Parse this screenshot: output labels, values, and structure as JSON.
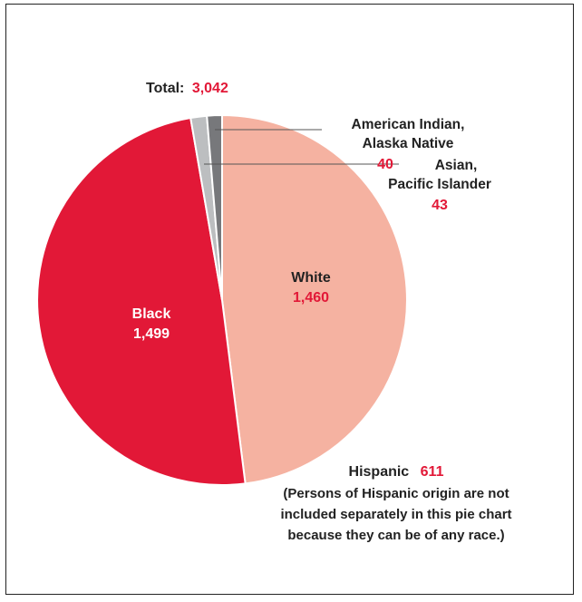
{
  "chart_data": {
    "type": "pie",
    "title": "",
    "total_label": "Total:",
    "total_value": "3,042",
    "slices": [
      {
        "name": "White",
        "value": 1460,
        "display": "1,460",
        "color": "#f5b2a1"
      },
      {
        "name": "Black",
        "value": 1499,
        "display": "1,499",
        "color": "#e21837"
      },
      {
        "name": "Asian, Pacific Islander",
        "name_line1": "Asian,",
        "name_line2": "Pacific Islander",
        "value": 43,
        "display": "43",
        "color": "#bcbec0"
      },
      {
        "name": "American Indian, Alaska Native",
        "name_line1": "American Indian,",
        "name_line2": "Alaska Native",
        "value": 40,
        "display": "40",
        "color": "#77787b"
      }
    ],
    "note": {
      "label": "Hispanic",
      "value": "611",
      "line1": "(Persons of Hispanic origin are not",
      "line2": "included separately in this pie chart",
      "line3": "because they can be of any race.)"
    },
    "colors": {
      "accent": "#e21837",
      "text": "#222222"
    }
  }
}
